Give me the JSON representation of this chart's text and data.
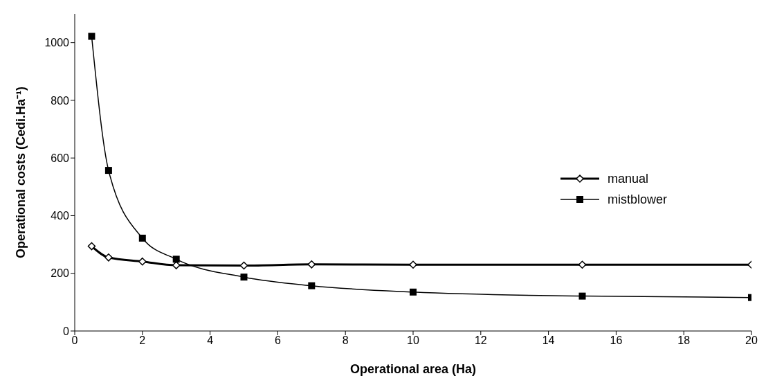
{
  "chart_data": {
    "type": "line",
    "xlabel": "Operational area (Ha)",
    "ylabel": "Operational costs (Cedi.Ha⁻¹)",
    "x": [
      0.5,
      1,
      2,
      3,
      5,
      7,
      10,
      15,
      20
    ],
    "series": [
      {
        "name": "manual",
        "color": "#000000",
        "marker": "diamond",
        "values": [
          294,
          255,
          241,
          228,
          227,
          231,
          230,
          230,
          230
        ]
      },
      {
        "name": "mistblower",
        "color": "#000000",
        "marker": "square",
        "values": [
          1022,
          557,
          322,
          249,
          187,
          157,
          135,
          121,
          116
        ]
      }
    ],
    "xlim": [
      0,
      20
    ],
    "xticks": [
      0,
      2,
      4,
      6,
      8,
      10,
      12,
      14,
      16,
      18,
      20
    ],
    "ylim": [
      0,
      1100
    ],
    "yticks": [
      0,
      200,
      400,
      600,
      800,
      1000
    ],
    "grid": false,
    "legend": "right",
    "line_style": "solid"
  }
}
